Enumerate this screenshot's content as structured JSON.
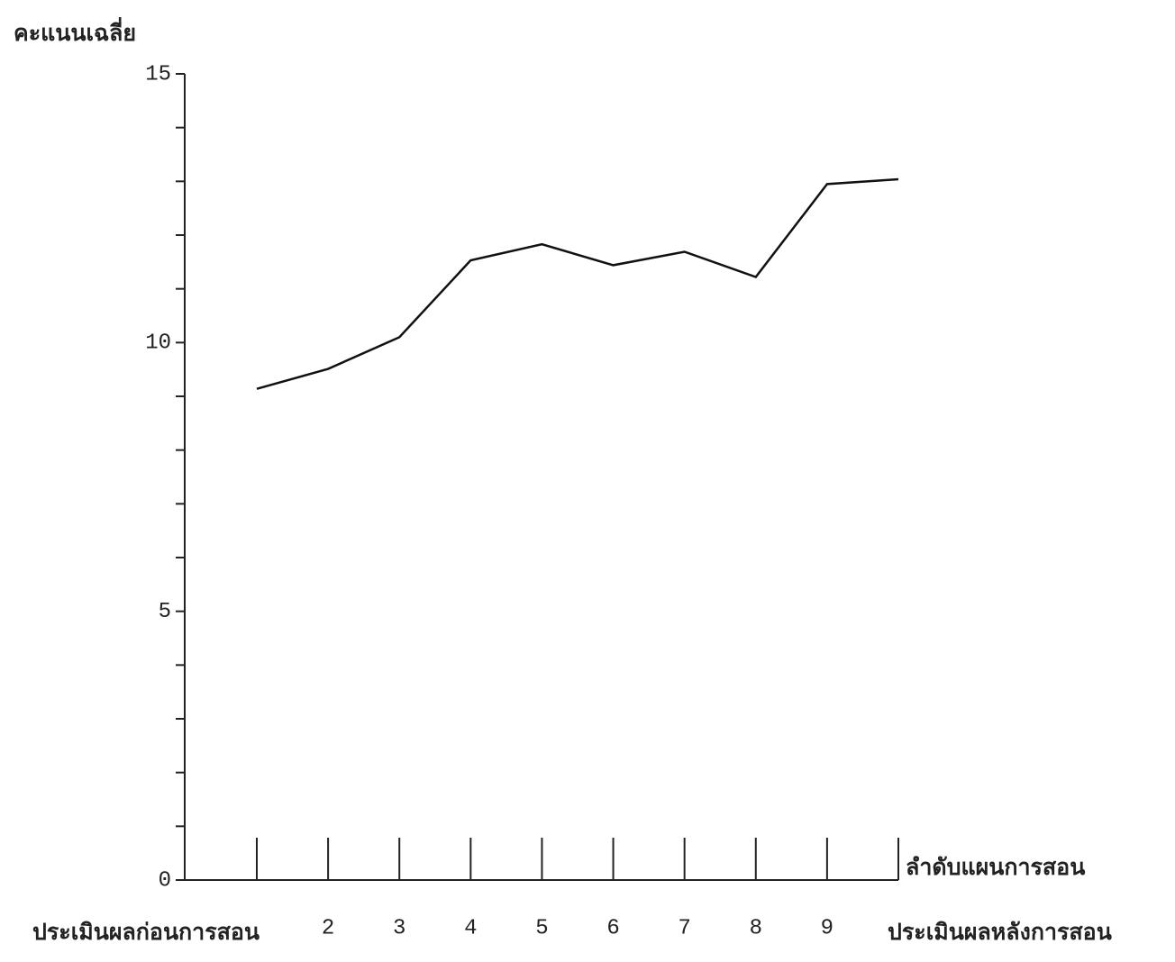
{
  "chart_data": {
    "type": "line",
    "y_axis_label": "คะแนนเฉลี่ย",
    "x_axis_label": "ลำดับแผนการสอน",
    "categories": [
      "ประเมินผลก่อนการสอน",
      "2",
      "3",
      "4",
      "5",
      "6",
      "7",
      "8",
      "9",
      "ประเมินผลหลังการสอน"
    ],
    "series": [
      {
        "color": "#111111",
        "values": [
          9.14,
          9.51,
          10.1,
          11.53,
          11.83,
          11.44,
          11.69,
          11.22,
          12.95,
          13.04
        ]
      }
    ],
    "ylim": [
      0,
      15
    ],
    "yticks": [
      0,
      5,
      10,
      15
    ],
    "yminorticks": [
      1,
      2,
      3,
      4,
      6,
      7,
      8,
      9,
      11,
      12,
      13,
      14
    ]
  }
}
